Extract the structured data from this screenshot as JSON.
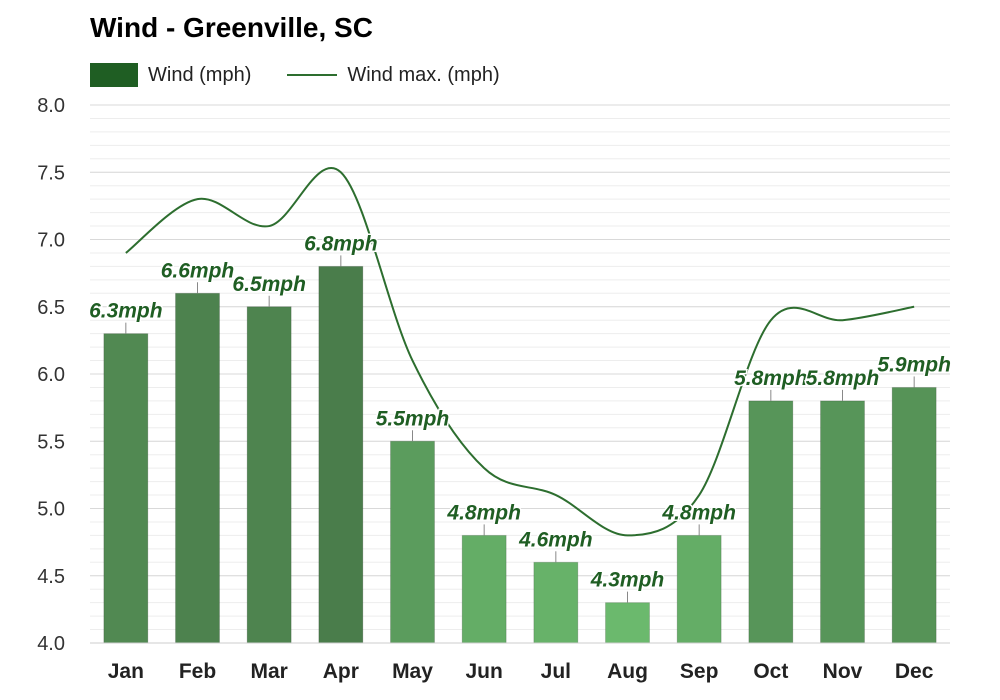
{
  "chart_data": {
    "type": "bar",
    "title": "Wind - Greenville, SC",
    "categories": [
      "Jan",
      "Feb",
      "Mar",
      "Apr",
      "May",
      "Jun",
      "Jul",
      "Aug",
      "Sep",
      "Oct",
      "Nov",
      "Dec"
    ],
    "series": [
      {
        "name": "Wind (mph)",
        "type": "bar",
        "values": [
          6.3,
          6.6,
          6.5,
          6.8,
          5.5,
          4.8,
          4.6,
          4.3,
          4.8,
          5.8,
          5.8,
          5.9
        ]
      },
      {
        "name": "Wind max. (mph)",
        "type": "line",
        "values": [
          6.9,
          7.3,
          7.1,
          7.5,
          6.1,
          5.3,
          5.1,
          4.8,
          5.1,
          6.4,
          6.4,
          6.5
        ]
      }
    ],
    "data_labels": [
      "6.3mph",
      "6.6mph",
      "6.5mph",
      "6.8mph",
      "5.5mph",
      "4.8mph",
      "4.6mph",
      "4.3mph",
      "4.8mph",
      "5.8mph",
      "5.8mph",
      "5.9mph"
    ],
    "ylim": [
      4.0,
      8.0
    ],
    "yticks": [
      "4.0",
      "4.5",
      "5.0",
      "5.5",
      "6.0",
      "6.5",
      "7.0",
      "7.5",
      "8.0"
    ],
    "grid": true,
    "legend": "top-left",
    "colors": {
      "bar_dark": "#4a7d4b",
      "bar_light": "#6bb96d",
      "line": "#2d6e2f",
      "label": "#1f5e23",
      "legend_bar": "#1f5e23"
    }
  }
}
